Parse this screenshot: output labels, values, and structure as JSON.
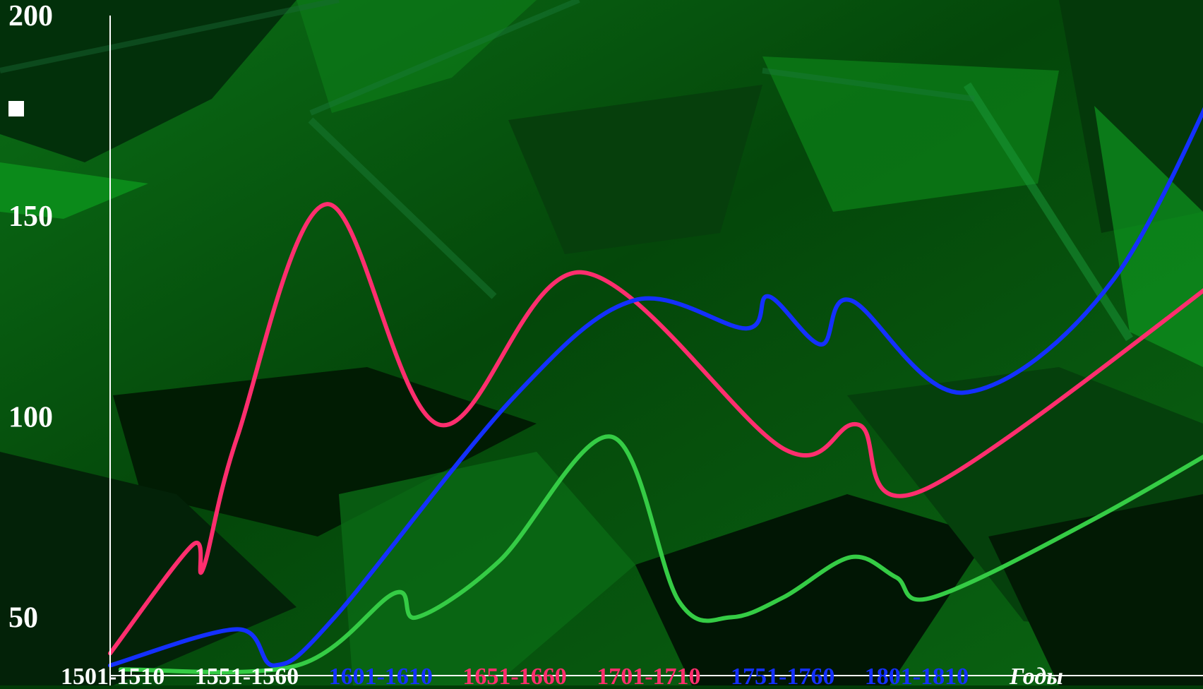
{
  "colors": {
    "background_dark": "#012a03",
    "background_mid": "#0a5a12",
    "background_light": "#0d8a1c",
    "axis": "#ffffff",
    "tick_label": "#ffffff",
    "red_series": "#ff2e6e",
    "blue_series": "#1430ff",
    "green_series": "#35cc45"
  },
  "chart_data": {
    "type": "line",
    "xlabel": "Годы",
    "ylabel": "",
    "ylim": [
      33,
      200
    ],
    "xlim": [
      0,
      7.8
    ],
    "yticks": [
      50,
      100,
      150,
      200
    ],
    "grid": false,
    "legend": "none",
    "categories": [
      "1501-1510",
      "1551-1560",
      "1601-1610",
      "1651-1660",
      "1701-1710",
      "1751-1760",
      "1801-1810"
    ],
    "category_colors": [
      "#ffffff",
      "#ffffff",
      "#1430ff",
      "#ff2e6e",
      "#ff2e6e",
      "#1430ff",
      "#1430ff"
    ],
    "series": [
      {
        "color": "#ff2e6e",
        "points": [
          [
            0,
            41
          ],
          [
            0.55,
            68
          ],
          [
            0.62,
            62
          ],
          [
            0.85,
            95
          ],
          [
            1.45,
            153
          ],
          [
            2.2,
            98
          ],
          [
            3.15,
            136
          ],
          [
            4.5,
            92
          ],
          [
            5.0,
            98
          ],
          [
            5.45,
            82
          ],
          [
            7.85,
            147
          ]
        ]
      },
      {
        "color": "#1430ff",
        "points": [
          [
            0,
            38
          ],
          [
            0.85,
            47
          ],
          [
            1.1,
            38
          ],
          [
            1.5,
            50
          ],
          [
            2.7,
            105
          ],
          [
            3.5,
            129
          ],
          [
            4.25,
            122
          ],
          [
            4.4,
            130
          ],
          [
            4.75,
            118
          ],
          [
            4.95,
            129
          ],
          [
            5.7,
            106
          ],
          [
            6.7,
            134
          ],
          [
            7.6,
            200
          ]
        ]
      },
      {
        "color": "#35cc45",
        "points": [
          [
            0.07,
            37
          ],
          [
            1.25,
            38
          ],
          [
            1.9,
            56
          ],
          [
            2.05,
            50
          ],
          [
            2.6,
            64
          ],
          [
            3.35,
            95
          ],
          [
            3.8,
            54
          ],
          [
            4.15,
            50
          ],
          [
            4.5,
            55
          ],
          [
            4.95,
            65
          ],
          [
            5.25,
            60
          ],
          [
            5.5,
            55
          ],
          [
            6.6,
            75
          ],
          [
            7.85,
            102
          ]
        ]
      }
    ]
  }
}
